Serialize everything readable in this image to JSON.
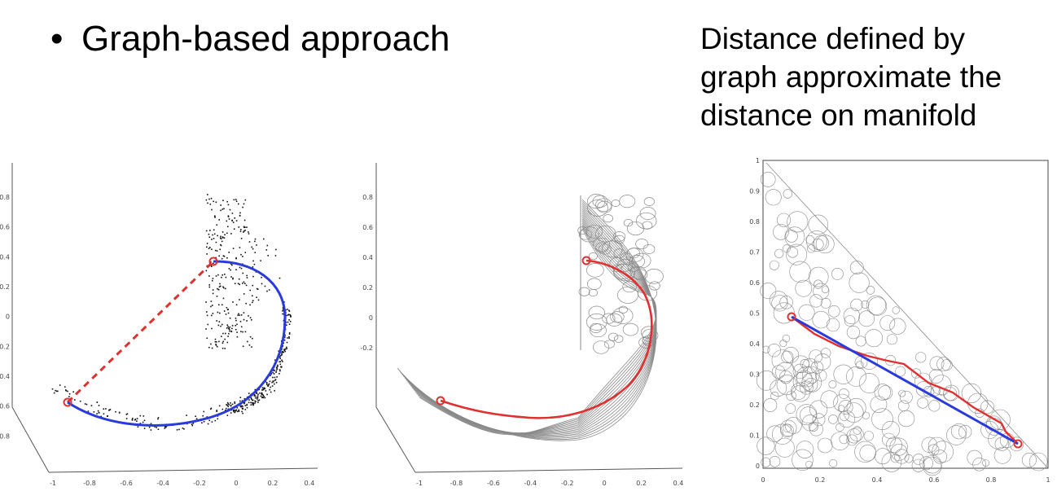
{
  "bullet": {
    "symbol": "•",
    "text": "Graph-based approach"
  },
  "note": {
    "lines": [
      "Distance defined by",
      "graph approximate the",
      "distance on manifold"
    ]
  },
  "colors": {
    "geodesic": "#2a3bdc",
    "graph_path": "#e03030",
    "euclidean": "#e03030",
    "points": "#111111",
    "mesh": "#8a8a8a"
  },
  "panels": {
    "scatter": {
      "x_ticks": [
        "-1",
        "-0.8",
        "-0.6",
        "-0.4",
        "-0.2",
        "0",
        "0.2",
        "0.4"
      ],
      "z_ticks": [
        "0.8",
        "0.6",
        "0.4",
        "0.2",
        "0",
        "-0.2",
        "-0.4",
        "-0.6",
        "-0.8"
      ]
    },
    "mesh": {
      "x_ticks": [
        "-1",
        "-0.8",
        "-0.6",
        "-0.4",
        "-0.2",
        "0",
        "0.2",
        "0.4"
      ],
      "z_ticks": [
        "0.8",
        "0.6",
        "0.4",
        "0.2",
        "0",
        "-0.2"
      ]
    },
    "embedding": {
      "x_ticks": [
        "0",
        "0.2",
        "0.4",
        "0.6",
        "0.8",
        "1"
      ],
      "y_ticks": [
        "1",
        "0.9",
        "0.8",
        "0.7",
        "0.6",
        "0.5",
        "0.4",
        "0.3",
        "0.2",
        "0.1",
        "0"
      ]
    }
  }
}
